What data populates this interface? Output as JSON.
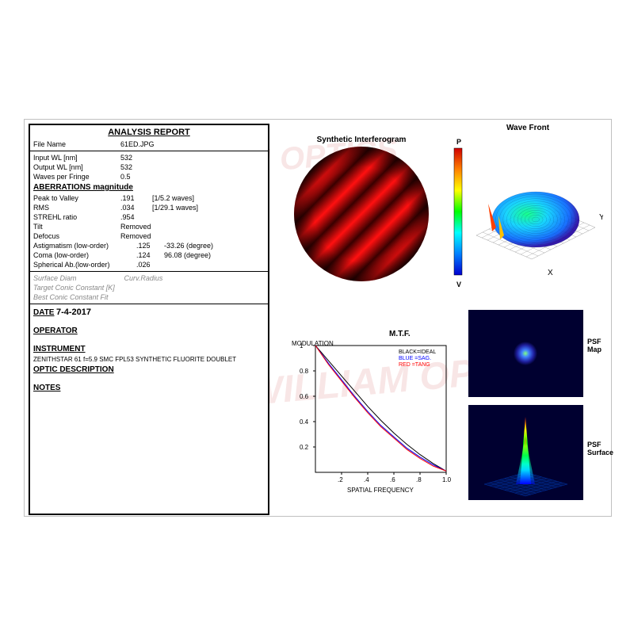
{
  "report": {
    "title": "ANALYSIS  REPORT",
    "file_name_label": "File Name",
    "file_name": "61ED.JPG",
    "input_wl_label": "Input WL [nm]",
    "input_wl": "532",
    "output_wl_label": "Output WL [nm]",
    "output_wl": "532",
    "waves_per_fringe_label": "Waves per Fringe",
    "waves_per_fringe": "0.5",
    "aberrations_header": "ABERRATIONS magnitude",
    "ptv_label": "Peak to Valley",
    "ptv_value": ".191",
    "ptv_waves": "[1/5.2 waves]",
    "rms_label": "RMS",
    "rms_value": ".034",
    "rms_waves": "[1/29.1 waves]",
    "strehl_label": "STREHL ratio",
    "strehl_value": ".954",
    "tilt_label": "Tilt",
    "tilt_value": "Removed",
    "defocus_label": "Defocus",
    "defocus_value": "Removed",
    "astig_label": "Astigmatism  (low-order)",
    "astig_value": ".125",
    "astig_deg": "-33.26 (degree)",
    "coma_label": "Coma           (low-order)",
    "coma_value": ".124",
    "coma_deg": "96.08 (degree)",
    "spherical_label": "Spherical Ab.(low-order)",
    "spherical_value": ".026",
    "surface_diam": "Surface Diam",
    "curv_radius": "Curv.Radius",
    "target_conic": "Target Conic Constant  [K]",
    "best_conic": "Best Conic Constant Fit",
    "date_label": "DATE",
    "date_value": "7-4-2017",
    "operator_label": "OPERATOR",
    "instrument_label": "INSTRUMENT",
    "instrument_value": "ZENITHSTAR 61 f=5.9 SMC FPL53 SYNTHETIC FLUORITE DOUBLET",
    "optic_desc_label": "OPTIC DESCRIPTION",
    "notes_label": "NOTES"
  },
  "interferogram": {
    "title": "Synthetic Interferogram",
    "fringe_count": 5,
    "fringe_angle": 45,
    "dark_color": "#3a0000",
    "bright_color": "#ff1010",
    "diameter": 170
  },
  "wavefront": {
    "title": "Wave Front",
    "x_label": "X",
    "y_label": "Y",
    "p_label": "P",
    "v_label": "V",
    "colorbar_colors": [
      "#d00000",
      "#ff8000",
      "#ffff00",
      "#00ff00",
      "#00ffff",
      "#0080ff",
      "#0000d0"
    ],
    "grid_color": "#a0a0a0"
  },
  "mtf": {
    "title": "M.T.F.",
    "y_label": "MODULATION",
    "x_label": "SPATIAL FREQUENCY",
    "legend_ideal": "BLACK=IDEAL",
    "legend_sag": "BLUE  =SAG.",
    "legend_tang": "RED   =TANG",
    "x_ticks": [
      ".2",
      ".4",
      ".6",
      ".8",
      "1.0"
    ],
    "y_ticks": [
      "1",
      "0.8",
      "0.6",
      "0.4",
      "0.2"
    ],
    "ideal_curve": [
      [
        0,
        1
      ],
      [
        0.1,
        0.88
      ],
      [
        0.2,
        0.76
      ],
      [
        0.3,
        0.64
      ],
      [
        0.4,
        0.52
      ],
      [
        0.5,
        0.41
      ],
      [
        0.6,
        0.31
      ],
      [
        0.7,
        0.22
      ],
      [
        0.8,
        0.14
      ],
      [
        0.9,
        0.07
      ],
      [
        1.0,
        0.01
      ]
    ],
    "sag_curve": [
      [
        0,
        1
      ],
      [
        0.1,
        0.86
      ],
      [
        0.2,
        0.73
      ],
      [
        0.3,
        0.6
      ],
      [
        0.4,
        0.48
      ],
      [
        0.5,
        0.37
      ],
      [
        0.6,
        0.28
      ],
      [
        0.7,
        0.19
      ],
      [
        0.8,
        0.12
      ],
      [
        0.9,
        0.06
      ],
      [
        1.0,
        0.01
      ]
    ],
    "tang_curve": [
      [
        0,
        1
      ],
      [
        0.1,
        0.85
      ],
      [
        0.2,
        0.72
      ],
      [
        0.3,
        0.59
      ],
      [
        0.4,
        0.47
      ],
      [
        0.5,
        0.36
      ],
      [
        0.6,
        0.27
      ],
      [
        0.7,
        0.18
      ],
      [
        0.8,
        0.11
      ],
      [
        0.9,
        0.05
      ],
      [
        1.0,
        0.01
      ]
    ],
    "ideal_color": "#000000",
    "sag_color": "#0000ff",
    "tang_color": "#ff0000"
  },
  "psf": {
    "map_label": "PSF Map",
    "surface_label": "PSF Surface",
    "center_color": "#80ff80",
    "halo_color": "#2020a0",
    "bg_color": "#000030"
  },
  "watermark": {
    "text1": "WILLIAM OPTICS",
    "text2": "WILLIAM OPTICS"
  }
}
